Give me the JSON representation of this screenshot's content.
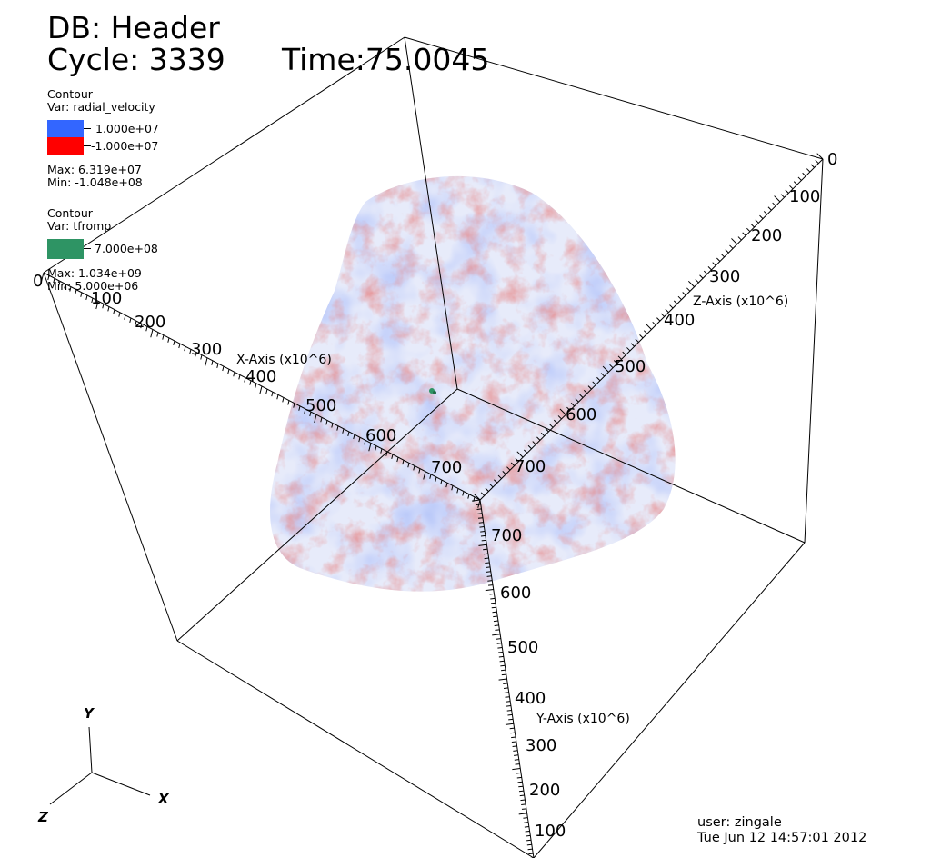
{
  "header": {
    "db_label": "DB: Header",
    "cycle_label": "Cycle: 3339",
    "time_label": "Time:75.0045"
  },
  "legend": {
    "plot1": {
      "kind": "Contour",
      "var_label": "Var: radial_velocity",
      "levels": [
        {
          "label": "1.000e+07",
          "color": "#3366ff"
        },
        {
          "label": "-1.000e+07",
          "color": "#ff0000"
        }
      ],
      "max_label": "Max:  6.319e+07",
      "min_label": "Min: -1.048e+08"
    },
    "plot2": {
      "kind": "Contour",
      "var_label": "Var: tfromp",
      "levels": [
        {
          "label": "7.000e+08",
          "color": "#2e9464"
        }
      ],
      "max_label": "Max:  1.034e+09",
      "min_label": "Min:  5.000e+06"
    }
  },
  "axes": {
    "x": {
      "title": "X-Axis (x10^6)",
      "ticks": [
        "0",
        "100",
        "200",
        "300",
        "400",
        "500",
        "600",
        "700"
      ]
    },
    "y": {
      "title": "Y-Axis (x10^6)",
      "ticks": [
        "100",
        "200",
        "300",
        "400",
        "500",
        "600",
        "700"
      ]
    },
    "z": {
      "title": "Z-Axis (x10^6)",
      "ticks": [
        "0",
        "100",
        "200",
        "300",
        "400",
        "500",
        "600",
        "700"
      ]
    }
  },
  "triad": {
    "x": "X",
    "y": "Y",
    "z": "Z"
  },
  "footer": {
    "user": "user: zingale",
    "date": "Tue Jun 12 14:57:01 2012"
  },
  "colors": {
    "positive_contour": "#3366ff",
    "negative_contour": "#ff0000",
    "tfromp_contour": "#2e9464"
  }
}
